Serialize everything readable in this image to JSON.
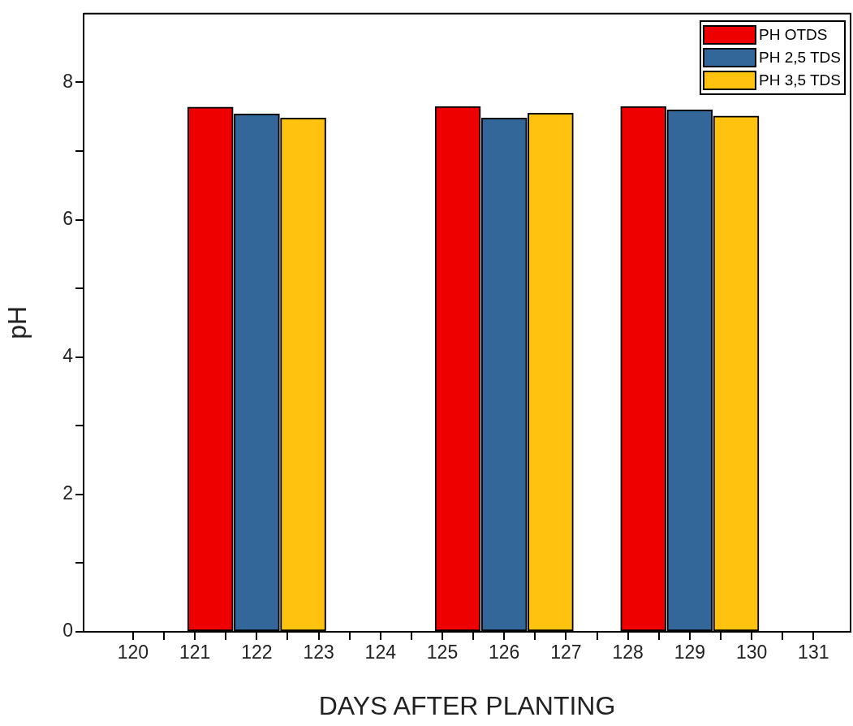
{
  "chart_data": {
    "type": "bar",
    "xlabel": "DAYS AFTER PLANTING",
    "ylabel": "pH",
    "xlim": [
      119.2,
      131.6
    ],
    "xticks": [
      120,
      {
        "value": 120.5,
        "label": null
      },
      121,
      {
        "value": 121.5,
        "label": null
      },
      122,
      {
        "value": 122.5,
        "label": null
      },
      123,
      {
        "value": 123.5,
        "label": null
      },
      124,
      {
        "value": 124.5,
        "label": null
      },
      125,
      {
        "value": 125.5,
        "label": null
      },
      126,
      {
        "value": 126.5,
        "label": null
      },
      127,
      {
        "value": 127.5,
        "label": null
      },
      128,
      {
        "value": 128.5,
        "label": null
      },
      129,
      {
        "value": 129.5,
        "label": null
      },
      130,
      {
        "value": 130.5,
        "label": null
      },
      131
    ],
    "ylim": [
      0,
      9
    ],
    "yticks": [
      0,
      {
        "value": 1,
        "label": null
      },
      2,
      {
        "value": 3,
        "label": null
      },
      4,
      {
        "value": 5,
        "label": null
      },
      6,
      {
        "value": 7,
        "label": null
      },
      8
    ],
    "grid": false,
    "legend": "top right",
    "series": [
      {
        "name": "PH OTDS",
        "color": "#ee0000",
        "x": [
          121.25,
          125.25,
          128.25
        ],
        "values": [
          7.64,
          7.65,
          7.65
        ]
      },
      {
        "name": "PH 2,5 TDS",
        "color": "#336699",
        "x": [
          122,
          126,
          129
        ],
        "values": [
          7.54,
          7.48,
          7.6
        ]
      },
      {
        "name": "PH 3,5 TDS",
        "color": "#ffc20e",
        "x": [
          122.75,
          126.75,
          129.75
        ],
        "values": [
          7.48,
          7.55,
          7.51
        ]
      }
    ]
  }
}
